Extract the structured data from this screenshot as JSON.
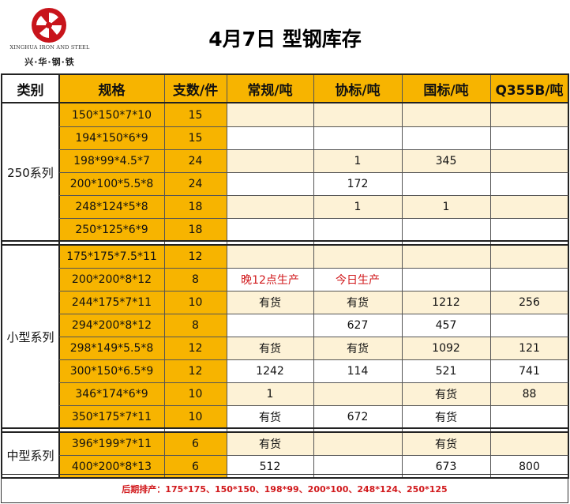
{
  "company": {
    "name_en": "XINGHUA IRON AND STEEL",
    "name_cn": "兴·华·钢·铁",
    "brand_color": "#c8141b"
  },
  "title": "4月7日 型钢库存",
  "columns": [
    "类别",
    "规格",
    "支数/件",
    "常规/吨",
    "协标/吨",
    "国标/吨",
    "Q355B/吨"
  ],
  "groups": [
    {
      "name": "250系列",
      "row_count": 6
    },
    {
      "name": "小型系列",
      "row_count": 8
    },
    {
      "name": "中型系列",
      "row_count": 2
    }
  ],
  "rows": [
    {
      "spec": "150*150*7*10",
      "pcs": "15",
      "normal": "",
      "assoc": "",
      "national": "",
      "q355b": ""
    },
    {
      "spec": "194*150*6*9",
      "pcs": "15",
      "normal": "",
      "assoc": "",
      "national": "",
      "q355b": ""
    },
    {
      "spec": "198*99*4.5*7",
      "pcs": "24",
      "normal": "",
      "assoc": "1",
      "national": "345",
      "q355b": ""
    },
    {
      "spec": "200*100*5.5*8",
      "pcs": "24",
      "normal": "",
      "assoc": "172",
      "national": "",
      "q355b": ""
    },
    {
      "spec": "248*124*5*8",
      "pcs": "18",
      "normal": "",
      "assoc": "1",
      "national": "1",
      "q355b": ""
    },
    {
      "spec": "250*125*6*9",
      "pcs": "18",
      "normal": "",
      "assoc": "",
      "national": "",
      "q355b": ""
    },
    {
      "spec": "175*175*7.5*11",
      "pcs": "12",
      "normal": "",
      "assoc": "",
      "national": "",
      "q355b": ""
    },
    {
      "spec": "200*200*8*12",
      "pcs": "8",
      "normal": "晚12点生产",
      "assoc": "今日生产",
      "national": "",
      "q355b": ""
    },
    {
      "spec": "244*175*7*11",
      "pcs": "10",
      "normal": "有货",
      "assoc": "有货",
      "national": "1212",
      "q355b": "256"
    },
    {
      "spec": "294*200*8*12",
      "pcs": "8",
      "normal": "",
      "assoc": "627",
      "national": "457",
      "q355b": ""
    },
    {
      "spec": "298*149*5.5*8",
      "pcs": "12",
      "normal": "有货",
      "assoc": "有货",
      "national": "1092",
      "q355b": "121"
    },
    {
      "spec": "300*150*6.5*9",
      "pcs": "12",
      "normal": "1242",
      "assoc": "114",
      "national": "521",
      "q355b": "741"
    },
    {
      "spec": "346*174*6*9",
      "pcs": "10",
      "normal": "1",
      "assoc": "",
      "national": "有货",
      "q355b": "88"
    },
    {
      "spec": "350*175*7*11",
      "pcs": "10",
      "normal": "有货",
      "assoc": "672",
      "national": "有货",
      "q355b": ""
    },
    {
      "spec": "396*199*7*11",
      "pcs": "6",
      "normal": "有货",
      "assoc": "",
      "national": "有货",
      "q355b": ""
    },
    {
      "spec": "400*200*8*13",
      "pcs": "6",
      "normal": "512",
      "assoc": "",
      "national": "673",
      "q355b": "800"
    }
  ],
  "footer": "后期排产：175*175、150*150、198*99、200*100、248*124、250*125",
  "colors": {
    "header_gold": "#f7b400",
    "row_cream": "#fdf2d6",
    "note_red": "#d1191c"
  }
}
